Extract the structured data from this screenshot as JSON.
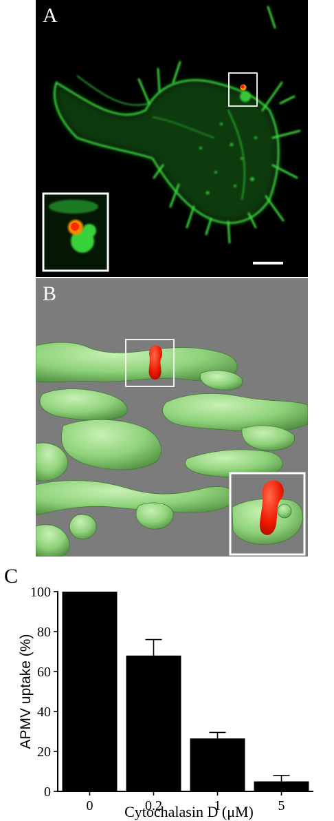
{
  "panels": {
    "a": {
      "label": "A"
    },
    "b": {
      "label": "B"
    },
    "c": {
      "label": "C"
    }
  },
  "colors": {
    "actin_green": "#36c83a",
    "particle_red": "#ff1a00",
    "particle_orange": "#ff9a00",
    "surface_green": "#8ed27a",
    "background_gray": "#7c7c7c"
  },
  "chart_data": {
    "type": "bar",
    "categories": [
      "0",
      "0.2",
      "1",
      "5"
    ],
    "values": [
      100,
      68,
      26.5,
      5
    ],
    "errors": [
      0,
      8,
      3,
      3
    ],
    "xlabel": "Cytochalasin D (μM)",
    "ylabel": "APMV uptake (%)",
    "ylim": [
      0,
      100
    ],
    "yticks": [
      0,
      20,
      40,
      60,
      80,
      100
    ],
    "bar_color": "#000000",
    "grid": false
  }
}
